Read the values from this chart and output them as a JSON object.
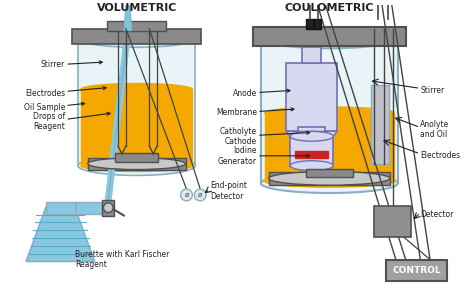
{
  "title_vol": "VOLUMETRIC",
  "title_coul": "COULOMETRIC",
  "labels_vol": {
    "burette": "Burette with Karl Fischer\nReagent",
    "endpoint": "End-point\nDetector",
    "drops": "Drops of\nReagent",
    "oil": "Oil Sample",
    "electrodes": "Electrodes",
    "stirrer": "Stirrer"
  },
  "labels_coul": {
    "control": "CONTROL",
    "detector": "Detector",
    "iodine": "Iodine\nGenerator",
    "catholyte": "Catholyte\nCathode",
    "membrane": "Membrane",
    "anode": "Anode",
    "electrodes": "Electrodes",
    "anolyte": "Anolyte\nand Oil",
    "stirrer": "Stirrer"
  },
  "colors": {
    "liquid_yellow": "#f5a800",
    "liquid_blue": "#7ac8e0",
    "liquid_blue_dark": "#5aaac8",
    "glass_fill": "#e8f4f8",
    "glass_stroke": "#8ab0c0",
    "metal_gray": "#8a8a8a",
    "metal_light": "#c8c8c8",
    "metal_dark": "#505050",
    "inner_glass_fill": "#d8d8f0",
    "inner_stroke": "#7070b8",
    "red_membrane": "#cc2222",
    "drop_blue": "#4499cc",
    "wire_color": "#444444",
    "text_color": "#222222",
    "bg_white": "#ffffff",
    "control_bg": "#a0a0a0",
    "burette_body": "#88c8e0",
    "detector_gray": "#909090"
  }
}
